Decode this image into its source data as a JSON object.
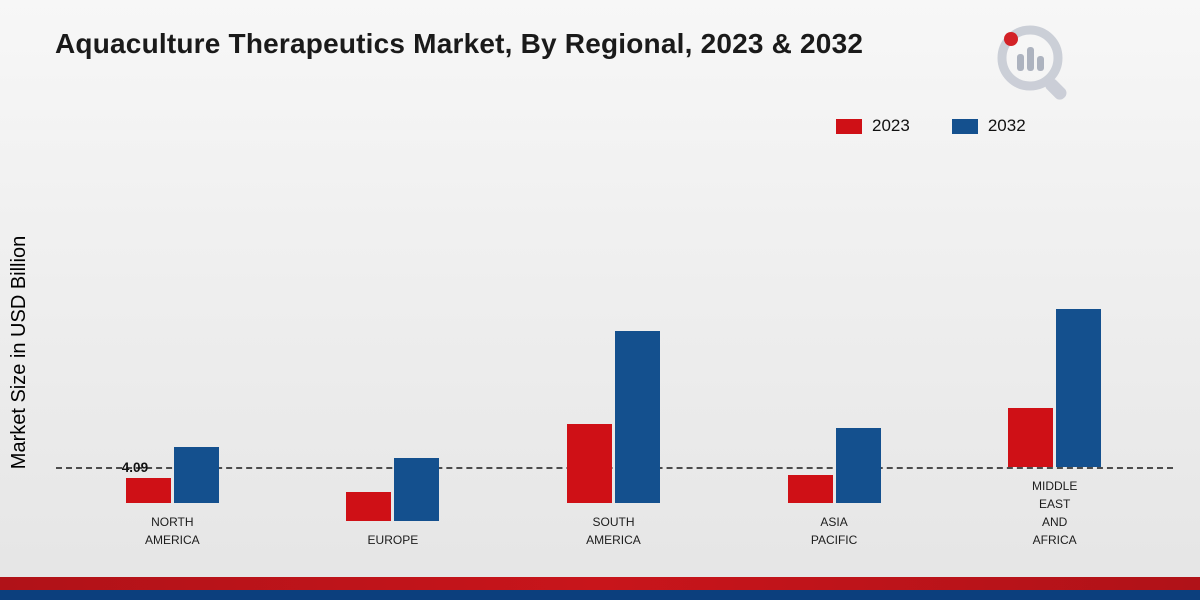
{
  "title": "Aquaculture Therapeutics Market, By Regional, 2023 & 2032",
  "y_axis_label": "Market Size in USD Billion",
  "legend": [
    {
      "label": "2023",
      "color": "#cf1016"
    },
    {
      "label": "2032",
      "color": "#14508e"
    }
  ],
  "chart_data": {
    "type": "bar",
    "title": "Aquaculture Therapeutics Market, By Regional, 2023 & 2032",
    "categories": [
      "NORTH\nAMERICA",
      "EUROPE",
      "SOUTH\nAMERICA",
      "ASIA\nPACIFIC",
      "MIDDLE\nEAST\nAND\nAFRICA"
    ],
    "series": [
      {
        "name": "2023",
        "color": "#cf1016",
        "values": [
          4.09,
          4.8,
          12.9,
          4.6,
          9.7
        ]
      },
      {
        "name": "2032",
        "color": "#14508e",
        "values": [
          9.1,
          10.3,
          28.1,
          12.2,
          25.8
        ]
      }
    ],
    "data_labels": [
      "4.09",
      "",
      "",
      "",
      ""
    ],
    "xlabel": "",
    "ylabel": "Market Size in USD Billion",
    "ylim": [
      0,
      30
    ],
    "grid": false,
    "legend_position": "top-right",
    "baseline_style": "dashed"
  },
  "footer": {
    "red_strip_color": "#b01218",
    "blue_strip_color": "#0c3f7d"
  }
}
